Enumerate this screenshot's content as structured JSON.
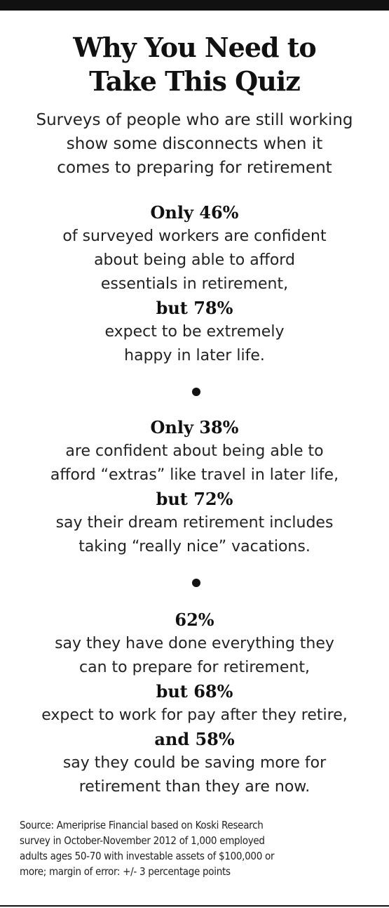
{
  "title": {
    "line1": "Why You Need to",
    "line2": "Take This Quiz"
  },
  "subtitle": {
    "line1": "Surveys of people who are still working",
    "line2": "show some disconnects when it",
    "line3": "comes to preparing for retirement"
  },
  "section1": {
    "stat1": "Only 46%",
    "desc1_line1": "of surveyed workers are confident",
    "desc1_line2": "about being able to afford",
    "desc1_line3": "essentials in retirement,",
    "stat2": "but 78%",
    "desc2_line1": "expect to be extremely",
    "desc2_line2": "happy in later life."
  },
  "section2": {
    "stat1": "Only 38%",
    "desc1_line1": "are confident about being able to",
    "desc1_line2": "afford “extras” like travel in later life,",
    "stat2": "but 72%",
    "desc2_line1": "say their dream retirement includes",
    "desc2_line2": "taking “really nice” vacations."
  },
  "section3": {
    "stat1": "62%",
    "desc1_line1": "say they have done everything they",
    "desc1_line2": "can to prepare for retirement,",
    "stat2": "but 68%",
    "desc2_line1": "expect to work for pay after they retire,",
    "stat3": "and 58%",
    "desc3_line1": "say they could be saving more for",
    "desc3_line2": "retirement than they are now."
  },
  "source": {
    "line1": "Source: Ameriprise Financial based on Koski Research",
    "line2": "survey in October-November 2012 of 1,000 employed",
    "line3": "adults ages 50-70 with investable assets of $100,000 or",
    "line4": "more; margin of error: +/- 3 percentage points"
  }
}
